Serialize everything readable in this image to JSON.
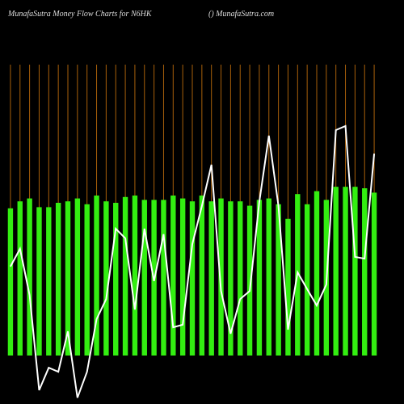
{
  "chart_data": {
    "type": "bar",
    "title": "MunafaSutra  Money Flow  Charts for N6HK",
    "subtitle": "() MunafaSutra.com",
    "categories": [
      null,
      null,
      null,
      null,
      null,
      null,
      null,
      null,
      null,
      null,
      null,
      null,
      null,
      null,
      null,
      null,
      null,
      null,
      null,
      null,
      null,
      null,
      null,
      null,
      null,
      null,
      null,
      null,
      null,
      null,
      null,
      null,
      null,
      null,
      null,
      null,
      null,
      null,
      null
    ],
    "series": [
      {
        "type": "bar",
        "color": "#33ee11",
        "values": [
          50.6,
          53,
          54,
          51,
          51,
          52.5,
          53,
          54,
          52,
          55,
          53,
          52.5,
          54.5,
          55,
          53.5,
          53.5,
          53.5,
          55,
          54,
          53,
          55,
          53,
          54,
          53,
          53,
          51.5,
          53.5,
          54,
          52,
          47,
          55.5,
          52,
          56.5,
          53.5,
          58,
          58,
          58,
          57.5,
          56
        ]
      },
      {
        "type": "line",
        "color": "#ffffff",
        "values": [
          30.6,
          36.7,
          20.8,
          -11.9,
          -4.2,
          -5.6,
          8.3,
          -14.5,
          -5.6,
          12.5,
          19.4,
          43.6,
          40.3,
          15.8,
          43.6,
          25.6,
          41.7,
          9.7,
          10.6,
          38.3,
          51.4,
          65.6,
          22.2,
          7.5,
          19.4,
          22.2,
          52.8,
          75.6,
          51.4,
          8.9,
          28.6,
          22.8,
          17.2,
          24.4,
          77.5,
          78.9,
          33.9,
          33.3,
          69.4
        ]
      }
    ],
    "ylim": [
      -15,
      100
    ]
  }
}
